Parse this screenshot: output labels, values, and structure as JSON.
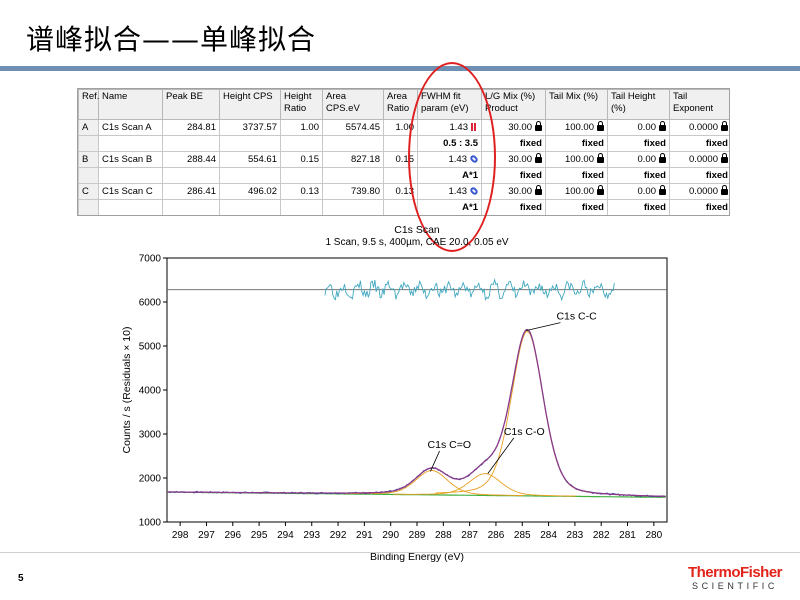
{
  "slide": {
    "title": "谱峰拟合——单峰拟合",
    "page_number": "5",
    "logo_line1": "ThermoFisher",
    "logo_line2": "SCIENTIFIC",
    "colors": {
      "title_rule": "#6f8fb5",
      "logo_red": "#e2231a",
      "highlight": "#e02020"
    }
  },
  "table": {
    "headers": [
      "Ref.",
      "Name",
      "Peak BE",
      "Height CPS",
      "Height Ratio",
      "Area CPS.eV",
      "Area Ratio",
      "FWHM fit param (eV)",
      "L/G Mix (%) Product",
      "Tail Mix (%)",
      "Tail Height (%)",
      "Tail Exponent"
    ],
    "rows": [
      {
        "ref": "A",
        "name": "C1s Scan A",
        "peak_be": "284.81",
        "height_cps": "3737.57",
        "height_ratio": "1.00",
        "area_cps_ev": "5574.45",
        "area_ratio": "1.00",
        "fwhm": "1.43",
        "fwhm_icon": "peak-flag-icon",
        "lg_mix": "30.00",
        "tail_mix": "100.00",
        "tail_height": "0.00",
        "tail_exponent": "0.0000",
        "constraint": {
          "fwhm": "0.5 : 3.5",
          "lg_mix": "fixed",
          "tail_mix": "fixed",
          "tail_height": "fixed",
          "tail_exponent": "fixed"
        }
      },
      {
        "ref": "B",
        "name": "C1s Scan B",
        "peak_be": "288.44",
        "height_cps": "554.61",
        "height_ratio": "0.15",
        "area_cps_ev": "827.18",
        "area_ratio": "0.15",
        "fwhm": "1.43",
        "fwhm_icon": "link-icon",
        "lg_mix": "30.00",
        "tail_mix": "100.00",
        "tail_height": "0.00",
        "tail_exponent": "0.0000",
        "constraint": {
          "fwhm": "A*1",
          "lg_mix": "fixed",
          "tail_mix": "fixed",
          "tail_height": "fixed",
          "tail_exponent": "fixed"
        }
      },
      {
        "ref": "C",
        "name": "C1s Scan C",
        "peak_be": "286.41",
        "height_cps": "496.02",
        "height_ratio": "0.13",
        "area_cps_ev": "739.80",
        "area_ratio": "0.13",
        "fwhm": "1.43",
        "fwhm_icon": "link-icon",
        "lg_mix": "30.00",
        "tail_mix": "100.00",
        "tail_height": "0.00",
        "tail_exponent": "0.0000",
        "constraint": {
          "fwhm": "A*1",
          "lg_mix": "fixed",
          "tail_mix": "fixed",
          "tail_height": "fixed",
          "tail_exponent": "fixed"
        }
      }
    ]
  },
  "chart_data": {
    "type": "line",
    "title": "C1s Scan",
    "subtitle": "1 Scan,  9.5 s,  400µm,  CAE 20.0,  0.05 eV",
    "xlabel": "Binding Energy (eV)",
    "ylabel": "Counts / s  (Residuals × 10)",
    "xlim": [
      298.5,
      279.5
    ],
    "ylim": [
      1000,
      7000
    ],
    "x_ticks": [
      298,
      297,
      296,
      295,
      294,
      293,
      292,
      291,
      290,
      289,
      288,
      287,
      286,
      285,
      284,
      283,
      282,
      281,
      280
    ],
    "y_ticks": [
      1000,
      2000,
      3000,
      4000,
      5000,
      6000,
      7000
    ],
    "grid": false,
    "background": {
      "x": [
        298.5,
        279.5
      ],
      "y": [
        1680,
        1560
      ]
    },
    "peaks": [
      {
        "name": "C1s C-C",
        "center": 284.81,
        "height": 3737.57,
        "fwhm": 1.43,
        "color": "#e8a020"
      },
      {
        "name": "C1s C=O",
        "center": 288.44,
        "height": 554.61,
        "fwhm": 1.43,
        "color": "#e8a020"
      },
      {
        "name": "C1s C-O",
        "center": 286.41,
        "height": 496.02,
        "fwhm": 1.43,
        "color": "#e8a020"
      }
    ],
    "residual_baseline": 6280,
    "residual_range_x": [
      292.5,
      281.5
    ],
    "annotations": [
      {
        "text": "C1s C-C",
        "x": 283.7,
        "y": 5600
      },
      {
        "text": "C1s C=O",
        "x": 288.6,
        "y": 2680
      },
      {
        "text": "C1s C-O",
        "x": 285.7,
        "y": 2980
      }
    ],
    "colors": {
      "envelope": "#8a3a8a",
      "data": "#2040a0",
      "background_line": "#40b040",
      "component": "#e8a020",
      "residual": "#40a8c0",
      "baseline": "#606060"
    }
  }
}
